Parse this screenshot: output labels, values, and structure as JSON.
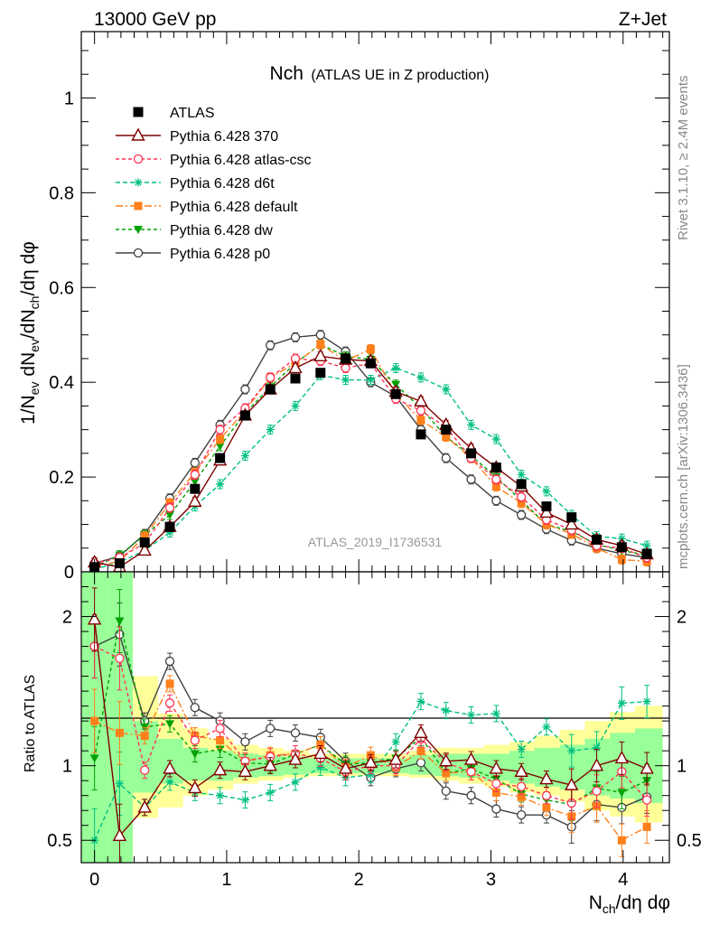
{
  "header": {
    "left": "13000 GeV pp",
    "right": "Z+Jet"
  },
  "side": {
    "rivet": "Rivet 3.1.10, ≥ 2.4M events",
    "mcplots": "mcplots.cern.ch [arXiv:1306.3436]"
  },
  "plot_title": {
    "main": "Nch",
    "sub": "(ATLAS UE in Z production)"
  },
  "watermark": "ATLAS_2019_I1736531",
  "axes": {
    "xlabel": "N_ch/dη dφ",
    "ylabel_top": "1/N_ev dN_ev/dN_ch/dη dφ",
    "ylabel_ratio": "Ratio to ATLAS"
  },
  "colors": {
    "atlas": "#000000",
    "p370": "#7f0000",
    "atlas_csc": "#ff3355",
    "d6t": "#00c080",
    "default": "#ff7f1a",
    "dw": "#00a000",
    "p0": "#404040",
    "band_green": "#99ff99",
    "band_yellow": "#ffff99"
  },
  "chart_data": [
    {
      "type": "line",
      "title": "Nch (ATLAS UE in Z production)",
      "xlabel": "N_ch/dη dφ",
      "ylabel": "1/N_ev dN_ev/dN_ch/dη dφ",
      "xlim": [
        -0.1,
        4.35
      ],
      "ylim": [
        0,
        1.14
      ],
      "xticks": [
        "0",
        "1",
        "2",
        "3",
        "4"
      ],
      "yticks": [
        "0",
        "0.2",
        "0.4",
        "0.6",
        "0.8",
        "1"
      ],
      "legend_position": "top-left",
      "x": [
        0.0,
        0.19,
        0.38,
        0.57,
        0.76,
        0.95,
        1.14,
        1.33,
        1.52,
        1.71,
        1.9,
        2.09,
        2.28,
        2.47,
        2.66,
        2.85,
        3.04,
        3.23,
        3.42,
        3.61,
        3.8,
        3.99,
        4.18
      ],
      "series": [
        {
          "name": "ATLAS",
          "key": "atlas",
          "marker": "square",
          "values": [
            0.01,
            0.018,
            0.062,
            0.095,
            0.175,
            0.24,
            0.33,
            0.385,
            0.408,
            0.42,
            0.45,
            0.44,
            0.375,
            0.29,
            0.3,
            0.25,
            0.22,
            0.185,
            0.138,
            0.115,
            0.068,
            0.052,
            0.038
          ]
        },
        {
          "name": "Pythia 6.428 370",
          "key": "p370",
          "marker": "triangle-open",
          "dash": "",
          "values": [
            0.02,
            0.01,
            0.045,
            0.095,
            0.148,
            0.235,
            0.33,
            0.385,
            0.43,
            0.455,
            0.448,
            0.445,
            0.38,
            0.36,
            0.31,
            0.26,
            0.22,
            0.18,
            0.125,
            0.1,
            0.068,
            0.055,
            0.037
          ]
        },
        {
          "name": "Pythia 6.428 atlas-csc",
          "key": "atlas_csc",
          "marker": "circle-open",
          "dash": "4,3",
          "values": [
            0.018,
            0.03,
            0.06,
            0.135,
            0.205,
            0.3,
            0.345,
            0.41,
            0.45,
            0.445,
            0.43,
            0.44,
            0.365,
            0.34,
            0.305,
            0.24,
            0.195,
            0.158,
            0.11,
            0.088,
            0.055,
            0.05,
            0.03
          ]
        },
        {
          "name": "Pythia 6.428 d6t",
          "key": "d6t",
          "marker": "star",
          "dash": "5,3",
          "values": [
            0.005,
            0.02,
            0.045,
            0.083,
            0.138,
            0.185,
            0.245,
            0.3,
            0.35,
            0.415,
            0.405,
            0.405,
            0.43,
            0.41,
            0.385,
            0.31,
            0.28,
            0.205,
            0.17,
            0.12,
            0.075,
            0.07,
            0.055
          ]
        },
        {
          "name": "Pythia 6.428 default",
          "key": "default",
          "marker": "square-filled",
          "dash": "8,3,2,3",
          "values": [
            0.012,
            0.022,
            0.075,
            0.145,
            0.21,
            0.28,
            0.34,
            0.41,
            0.44,
            0.48,
            0.445,
            0.47,
            0.375,
            0.32,
            0.285,
            0.24,
            0.18,
            0.145,
            0.1,
            0.08,
            0.05,
            0.026,
            0.022
          ]
        },
        {
          "name": "Pythia 6.428 dw",
          "key": "dw",
          "marker": "triangle-down-filled",
          "dash": "4,3",
          "values": [
            0.01,
            0.035,
            0.078,
            0.12,
            0.19,
            0.265,
            0.335,
            0.39,
            0.44,
            0.48,
            0.455,
            0.448,
            0.395,
            0.345,
            0.285,
            0.245,
            0.2,
            0.15,
            0.1,
            0.085,
            0.058,
            0.045,
            0.035
          ]
        },
        {
          "name": "Pythia 6.428 p0",
          "key": "p0",
          "marker": "circle-open",
          "dash": "",
          "values": [
            0.018,
            0.033,
            0.08,
            0.155,
            0.23,
            0.31,
            0.385,
            0.478,
            0.495,
            0.5,
            0.465,
            0.4,
            0.37,
            0.3,
            0.24,
            0.195,
            0.15,
            0.12,
            0.09,
            0.066,
            0.05,
            0.038,
            0.03
          ]
        }
      ]
    },
    {
      "type": "line",
      "ylabel": "Ratio to ATLAS",
      "xlim": [
        -0.1,
        4.35
      ],
      "ylim": [
        0.35,
        2.3
      ],
      "yticks": [
        "0.5",
        "1",
        "2"
      ],
      "x": [
        0.0,
        0.19,
        0.38,
        0.57,
        0.76,
        0.95,
        1.14,
        1.33,
        1.52,
        1.71,
        1.9,
        2.09,
        2.28,
        2.47,
        2.66,
        2.85,
        3.04,
        3.23,
        3.42,
        3.61,
        3.8,
        3.99,
        4.18
      ],
      "band_edges": [
        -0.1,
        0.1,
        0.29,
        0.48,
        0.67,
        0.86,
        1.05,
        1.24,
        1.43,
        1.62,
        1.81,
        2.0,
        2.19,
        2.38,
        2.57,
        2.76,
        2.95,
        3.14,
        3.33,
        3.52,
        3.71,
        3.9,
        4.09,
        4.3
      ],
      "band_green": [
        [
          0.35,
          2.3
        ],
        [
          0.35,
          2.3
        ],
        [
          0.82,
          1.3
        ],
        [
          0.88,
          1.18
        ],
        [
          0.9,
          1.12
        ],
        [
          0.9,
          1.1
        ],
        [
          0.92,
          1.08
        ],
        [
          0.93,
          1.07
        ],
        [
          0.94,
          1.06
        ],
        [
          0.95,
          1.05
        ],
        [
          0.95,
          1.05
        ],
        [
          0.95,
          1.05
        ],
        [
          0.95,
          1.05
        ],
        [
          0.94,
          1.07
        ],
        [
          0.93,
          1.08
        ],
        [
          0.92,
          1.08
        ],
        [
          0.9,
          1.08
        ],
        [
          0.88,
          1.1
        ],
        [
          0.86,
          1.12
        ],
        [
          0.84,
          1.14
        ],
        [
          0.8,
          1.18
        ],
        [
          0.78,
          1.22
        ],
        [
          0.75,
          1.25
        ]
      ],
      "band_yellow": [
        [
          0.35,
          2.3
        ],
        [
          0.35,
          2.3
        ],
        [
          0.65,
          1.6
        ],
        [
          0.72,
          1.35
        ],
        [
          0.8,
          1.25
        ],
        [
          0.84,
          1.18
        ],
        [
          0.88,
          1.14
        ],
        [
          0.9,
          1.12
        ],
        [
          0.92,
          1.1
        ],
        [
          0.93,
          1.08
        ],
        [
          0.93,
          1.08
        ],
        [
          0.93,
          1.08
        ],
        [
          0.93,
          1.08
        ],
        [
          0.92,
          1.1
        ],
        [
          0.9,
          1.12
        ],
        [
          0.88,
          1.12
        ],
        [
          0.86,
          1.14
        ],
        [
          0.82,
          1.16
        ],
        [
          0.8,
          1.2
        ],
        [
          0.76,
          1.24
        ],
        [
          0.7,
          1.3
        ],
        [
          0.66,
          1.36
        ],
        [
          0.62,
          1.4
        ]
      ],
      "series": [
        {
          "key": "p370",
          "values": [
            1.98,
            0.53,
            0.72,
            0.98,
            0.85,
            0.97,
            0.96,
            1.0,
            1.04,
            1.08,
            0.98,
            1.02,
            1.04,
            1.22,
            1.03,
            1.04,
            0.98,
            0.96,
            0.91,
            0.87,
            1.0,
            1.05,
            0.98
          ]
        },
        {
          "key": "atlas_csc",
          "values": [
            1.8,
            1.72,
            0.97,
            1.42,
            1.17,
            1.25,
            1.03,
            1.06,
            1.08,
            1.05,
            0.96,
            1.0,
            1.0,
            1.18,
            1.02,
            0.96,
            0.88,
            0.86,
            0.8,
            0.75,
            0.83,
            0.96,
            0.77
          ]
        },
        {
          "key": "d6t",
          "values": [
            0.5,
            0.88,
            0.72,
            0.89,
            0.82,
            0.8,
            0.77,
            0.82,
            0.89,
            0.99,
            0.92,
            0.94,
            1.16,
            1.43,
            1.37,
            1.34,
            1.35,
            1.11,
            1.26,
            1.1,
            1.12,
            1.42,
            1.43
          ]
        },
        {
          "key": "default",
          "values": [
            1.3,
            1.22,
            1.2,
            1.55,
            1.2,
            1.17,
            1.03,
            1.07,
            1.08,
            1.14,
            0.99,
            1.07,
            0.99,
            1.1,
            0.95,
            0.96,
            0.82,
            0.79,
            0.72,
            0.66,
            0.73,
            0.5,
            0.59
          ]
        },
        {
          "key": "dw",
          "values": [
            1.05,
            1.97,
            1.26,
            1.28,
            1.08,
            1.11,
            1.02,
            1.01,
            1.08,
            1.14,
            1.01,
            1.02,
            1.05,
            1.19,
            0.95,
            0.98,
            0.91,
            0.81,
            0.77,
            0.74,
            0.85,
            0.82,
            0.9
          ]
        },
        {
          "key": "p0",
          "values": [
            1.8,
            1.88,
            1.3,
            1.7,
            1.39,
            1.3,
            1.16,
            1.25,
            1.22,
            1.19,
            1.03,
            0.92,
            0.98,
            1.02,
            0.83,
            0.8,
            0.71,
            0.67,
            0.67,
            0.59,
            0.74,
            0.72,
            0.79
          ]
        }
      ]
    }
  ]
}
